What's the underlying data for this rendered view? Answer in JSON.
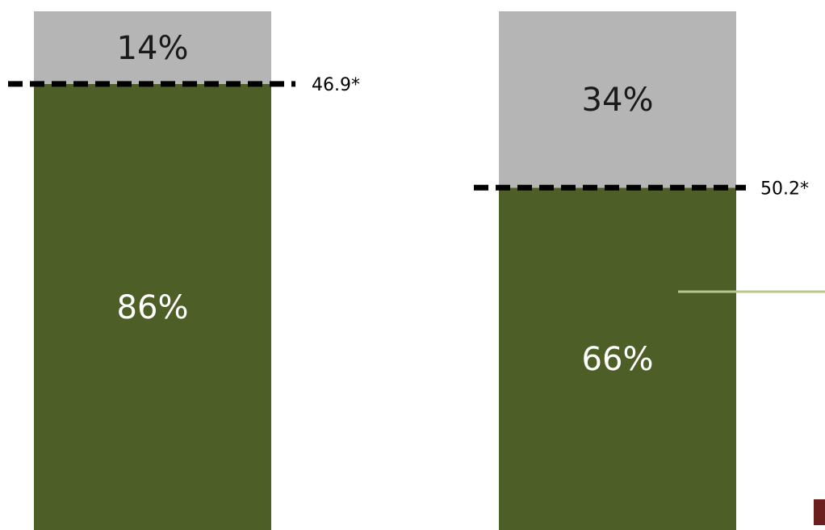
{
  "chart_data": {
    "type": "bar",
    "stacked": true,
    "normalized": true,
    "categories": [
      "",
      ""
    ],
    "series": [
      {
        "values": [
          86,
          66
        ],
        "labels": [
          "86%",
          "66%"
        ],
        "color": "#4d5e27",
        "label_color": "#ffffff"
      },
      {
        "values": [
          14,
          34
        ],
        "labels": [
          "14%",
          "34%"
        ],
        "color": "#b5b5b5",
        "label_color": "#1a1a1a"
      }
    ],
    "reference_lines": [
      {
        "value": 46.9,
        "label": "46.9*"
      },
      {
        "value": 50.2,
        "label": "50.2*"
      }
    ],
    "legend": "none",
    "grid": false,
    "colors": {
      "bottom_segment": "#4d5e27",
      "top_segment": "#b5b5b5",
      "reference_line": "#000000",
      "connector_line": "#b9c98d",
      "corner_mark": "#6b1f1f"
    }
  }
}
